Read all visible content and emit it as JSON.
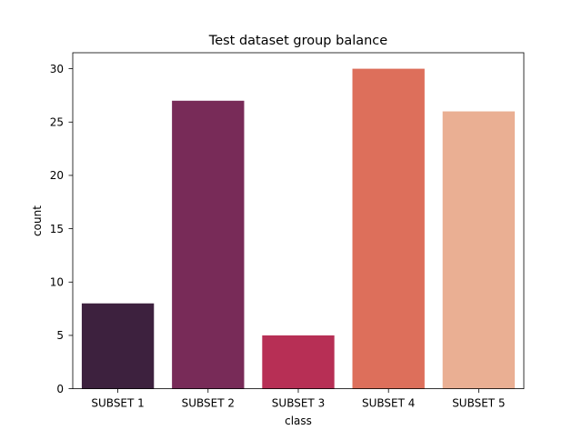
{
  "chart_data": {
    "type": "bar",
    "title": "Test dataset group balance",
    "xlabel": "class",
    "ylabel": "count",
    "categories": [
      "SUBSET 1",
      "SUBSET 2",
      "SUBSET 3",
      "SUBSET 4",
      "SUBSET 5"
    ],
    "values": [
      8,
      27,
      5,
      30,
      26
    ],
    "colors": [
      "#3d213e",
      "#782b58",
      "#b72f55",
      "#dd6f5b",
      "#eaaf93"
    ],
    "ylim": [
      0,
      31.5
    ],
    "yticks": [
      0,
      5,
      10,
      15,
      20,
      25,
      30
    ],
    "grid": false,
    "legend": "none"
  }
}
